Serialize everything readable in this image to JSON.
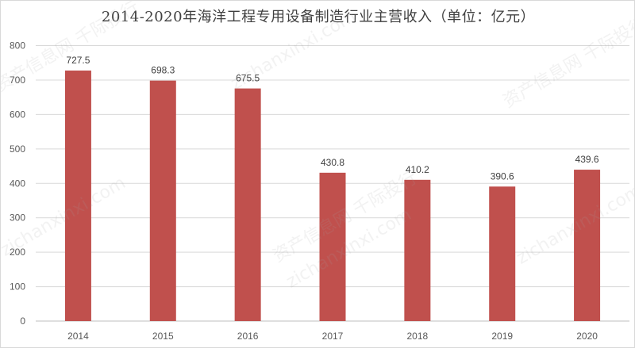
{
  "chart_data": {
    "type": "bar",
    "title": "2014-2020年海洋工程专用设备制造行业主营收入（单位：亿元）",
    "categories": [
      "2014",
      "2015",
      "2016",
      "2017",
      "2018",
      "2019",
      "2020"
    ],
    "values": [
      727.5,
      698.3,
      675.5,
      430.8,
      410.2,
      390.6,
      439.6
    ],
    "data_labels": [
      "727.5",
      "698.3",
      "675.5",
      "430.8",
      "410.2",
      "390.6",
      "439.6"
    ],
    "ylim": [
      0,
      800
    ],
    "yticks": [
      "0",
      "100",
      "200",
      "300",
      "400",
      "500",
      "600",
      "700",
      "800"
    ],
    "grid": true,
    "bar_color": "#c0504d"
  },
  "watermark": {
    "text_cn": "资产信息网  千际投行",
    "text_en": "zichanxinxi.com"
  }
}
